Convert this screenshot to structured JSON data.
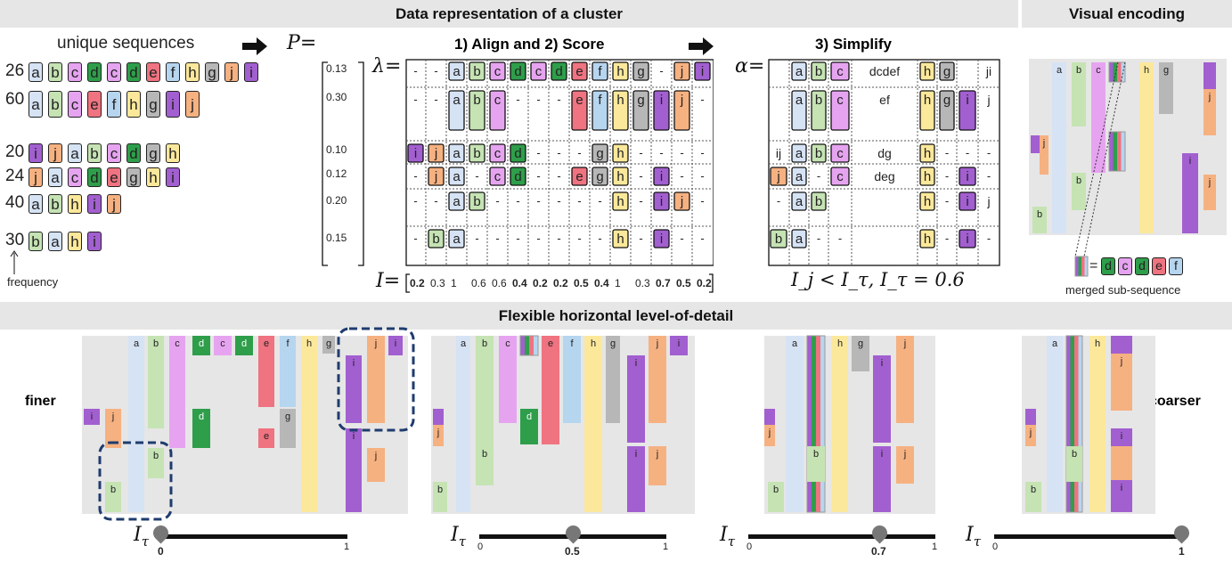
{
  "headers": {
    "top": "Data representation of a cluster",
    "visual": "Visual encoding",
    "bottom": "Flexible horizontal level-of-detail"
  },
  "left": {
    "title": "unique sequences",
    "freq_label": "frequency",
    "frequencies": [
      "26",
      "60",
      "20",
      "24",
      "40",
      "30"
    ],
    "sequences": [
      [
        "a",
        "b",
        "c",
        "d",
        "c",
        "d",
        "e",
        "f",
        "h",
        "g",
        "j",
        "i"
      ],
      [
        "a",
        "b",
        "c",
        "e",
        "f",
        "h",
        "g",
        "i",
        "j"
      ],
      [
        "i",
        "j",
        "a",
        "b",
        "c",
        "d",
        "g",
        "h"
      ],
      [
        "j",
        "a",
        "c",
        "d",
        "e",
        "g",
        "h",
        "i"
      ],
      [
        "a",
        "b",
        "h",
        "i",
        "j"
      ],
      [
        "b",
        "a",
        "h",
        "i"
      ]
    ]
  },
  "p_matrix": {
    "symbol": "P",
    "values": [
      "0.13",
      "0.30",
      "0.10",
      "0.12",
      "0.20",
      "0.15"
    ]
  },
  "align": {
    "title": "1) Align and 2) Score",
    "lambda": "λ",
    "i_label": "I",
    "i_values": [
      "0.2",
      "0.3",
      "1",
      "0.6",
      "0.6",
      "0.4",
      "0.2",
      "0.2",
      "0.5",
      "0.4",
      "1",
      "0.3",
      "0.7",
      "0.5",
      "0.2"
    ]
  },
  "simplify": {
    "title": "3) Simplify",
    "alpha": "α",
    "merged": [
      "dcdef",
      "ef",
      "dg",
      "deg",
      "",
      ""
    ],
    "right_col": [
      "ji",
      "j",
      "",
      "",
      "j",
      ""
    ],
    "left_col": [
      "",
      "",
      "ij",
      "",
      "",
      ""
    ],
    "condition": "I_j < I_τ, I_τ = 0.6"
  },
  "visual_encoding": {
    "legend_label": "merged sub-sequence",
    "legend_letters": [
      "d",
      "c",
      "d",
      "e",
      "f"
    ]
  },
  "lod": {
    "finer": "finer",
    "coarser": "coarser",
    "itau": "I",
    "sliders": [
      {
        "value": "0",
        "max": "1",
        "min": ""
      },
      {
        "value": "0.5",
        "max": "1",
        "min": "0"
      },
      {
        "value": "0.7",
        "max": "1",
        "min": "0"
      },
      {
        "value": "1",
        "max": "",
        "min": "0"
      }
    ],
    "slider_positions": [
      0,
      0.5,
      0.7,
      1
    ]
  },
  "colors": {
    "a": "#d6e3f5",
    "b": "#c5e3b3",
    "c": "#e6a4f0",
    "d": "#2e9e4a",
    "e": "#ef7380",
    "f": "#b6d5ef",
    "g": "#b7b7b7",
    "h": "#fbe89a",
    "i": "#a25fd0",
    "j": "#f6b181"
  }
}
